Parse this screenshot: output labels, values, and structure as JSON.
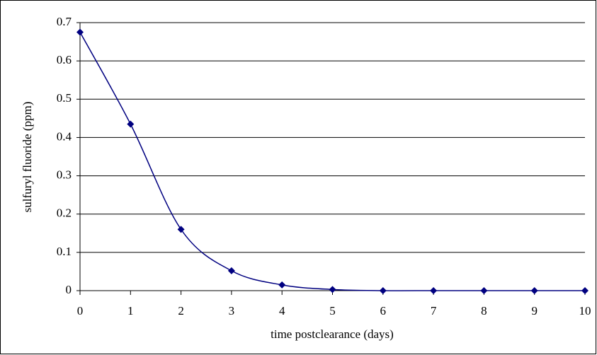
{
  "chart_data": {
    "type": "line",
    "xlabel": "time postclearance (days)",
    "ylabel": "sulfuryl fluoride (ppm)",
    "x": [
      0,
      1,
      2,
      3,
      4,
      5,
      6,
      7,
      8,
      9,
      10
    ],
    "values": [
      0.675,
      0.435,
      0.16,
      0.052,
      0.015,
      0.003,
      0,
      0,
      0,
      0,
      0
    ],
    "color": "#000080",
    "xlim": [
      0,
      10
    ],
    "ylim": [
      0,
      0.7
    ],
    "xticks": [
      0,
      1,
      2,
      3,
      4,
      5,
      6,
      7,
      8,
      9,
      10
    ],
    "yticks": [
      0,
      0.1,
      0.2,
      0.3,
      0.4,
      0.5,
      0.6,
      0.7
    ],
    "grid": true
  }
}
